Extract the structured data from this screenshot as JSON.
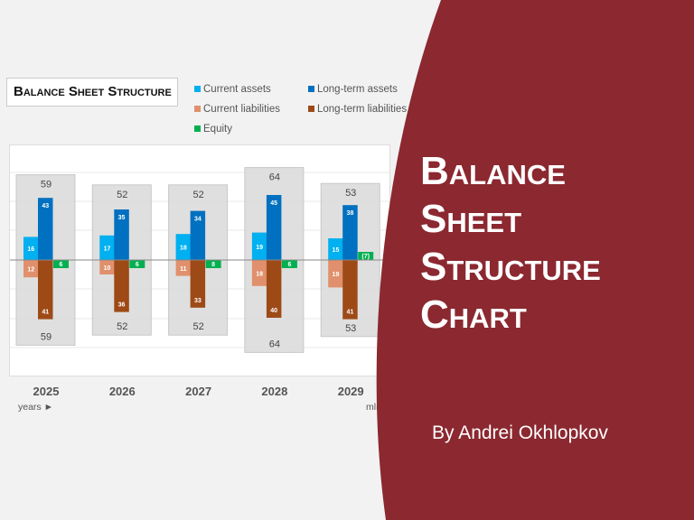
{
  "chart_data": {
    "type": "bar",
    "title": "Balance Sheet Structure",
    "categories": [
      "2025",
      "2026",
      "2027",
      "2028",
      "2029"
    ],
    "series": [
      {
        "name": "Current assets",
        "values": [
          16,
          17,
          18,
          19,
          15
        ],
        "color": "#00b0f0"
      },
      {
        "name": "Long-term assets",
        "values": [
          43,
          35,
          34,
          45,
          38
        ],
        "color": "#0070c0"
      },
      {
        "name": "Current liabilities",
        "values": [
          12,
          10,
          11,
          18,
          19
        ],
        "color": "#e0906c"
      },
      {
        "name": "Long-term liabilities",
        "values": [
          41,
          36,
          33,
          40,
          41
        ],
        "color": "#9e4a17"
      },
      {
        "name": "Equity",
        "values": [
          6,
          6,
          8,
          6,
          -7
        ],
        "labels": [
          "6",
          "6",
          "8",
          "6",
          "(7)"
        ],
        "color": "#00b050"
      }
    ],
    "totals": [
      59,
      52,
      52,
      64,
      53
    ],
    "xlabel": "years ►",
    "ylabel": "mln",
    "grid": true,
    "legend": "top"
  },
  "slide": {
    "title_lines": [
      "Balance",
      "Sheet",
      "Structure",
      "Chart"
    ],
    "author": "By Andrei Okhlopkov",
    "accent": "#8b2830"
  }
}
